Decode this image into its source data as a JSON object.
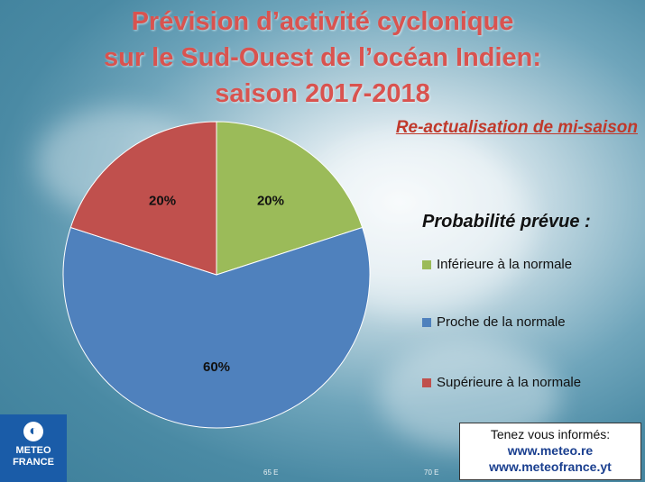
{
  "title_lines": [
    "Prévision d’activité cyclonique",
    "sur le Sud-Ouest de l’océan Indien:",
    "saison 2017-2018"
  ],
  "subtitle": "Re-actualisation de mi-saison",
  "legend": {
    "title": "Probabilité prévue :",
    "items": [
      {
        "label": "Inférieure à la normale",
        "color": "#9bbb59"
      },
      {
        "label": "Proche de la normale",
        "color": "#4f81bd"
      },
      {
        "label": "Supérieure à la normale",
        "color": "#c0504d"
      }
    ]
  },
  "chart_data": {
    "type": "pie",
    "categories": [
      "Inférieure à la normale",
      "Proche de la normale",
      "Supérieure à la normale"
    ],
    "values": [
      20,
      60,
      20
    ],
    "data_labels": [
      "20%",
      "60%",
      "20%"
    ],
    "colors": [
      "#9bbb59",
      "#4f81bd",
      "#c0504d"
    ],
    "legend_position": "right"
  },
  "logo": {
    "line1": "METEO",
    "line2": "FRANCE"
  },
  "info": {
    "line1": "Tenez vous informés:",
    "line2": "www.meteo.re",
    "line3": "www.meteofrance.yt"
  },
  "map_labels": [
    "65 E",
    "70 E"
  ]
}
